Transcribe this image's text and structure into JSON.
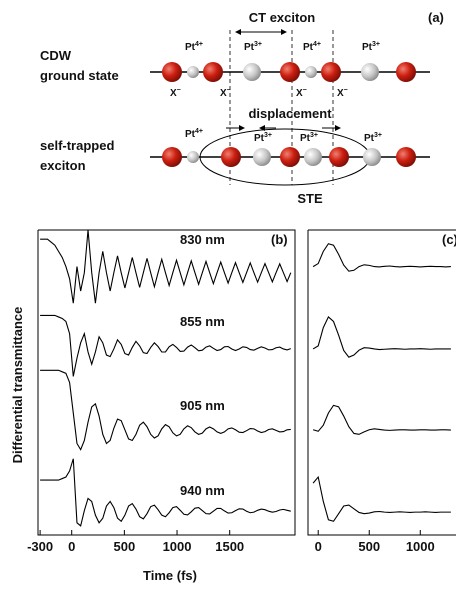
{
  "diagram": {
    "panel_label": "(a)",
    "title": "CT exciton",
    "ground_label": [
      "CDW",
      "ground state"
    ],
    "ste_label": [
      "self-trapped",
      "exciton"
    ],
    "displacement": "displacement",
    "ste": "STE",
    "ground_ions": [
      {
        "base": "Pt",
        "sup": "4+"
      },
      {
        "base": "Pt",
        "sup": "3+"
      },
      {
        "base": "Pt",
        "sup": "4+"
      },
      {
        "base": "Pt",
        "sup": "3+"
      }
    ],
    "ground_halogens": [
      {
        "base": "X",
        "sup": "−"
      },
      {
        "base": "X",
        "sup": "−"
      },
      {
        "base": "X",
        "sup": "−"
      },
      {
        "base": "X",
        "sup": "−"
      }
    ],
    "ste_ions": [
      {
        "base": "Pt",
        "sup": "4+"
      },
      {
        "base": "Pt",
        "sup": "3+"
      },
      {
        "base": "Pt",
        "sup": "3+"
      },
      {
        "base": "Pt",
        "sup": "3+"
      }
    ]
  },
  "chart_data": [
    {
      "type": "line",
      "panel_label": "(b)",
      "xlabel": "Time (fs)",
      "ylabel": "Differential transmittance",
      "xlim": [
        -320,
        2120
      ],
      "ylim": [
        0,
        100
      ],
      "xticks": [
        -300,
        0,
        500,
        1000,
        1500
      ],
      "x": [
        -300,
        -265,
        -230,
        -195,
        -160,
        -125,
        -90,
        -55,
        -20,
        15,
        50,
        85,
        120,
        155,
        190,
        225,
        260,
        295,
        330,
        365,
        400,
        435,
        470,
        505,
        540,
        575,
        610,
        645,
        680,
        715,
        750,
        785,
        820,
        855,
        890,
        925,
        960,
        995,
        1030,
        1065,
        1100,
        1135,
        1170,
        1205,
        1240,
        1275,
        1310,
        1345,
        1380,
        1415,
        1450,
        1485,
        1520,
        1555,
        1590,
        1625,
        1660,
        1695,
        1730,
        1765,
        1800,
        1835,
        1870,
        1905,
        1940,
        1975,
        2010,
        2045,
        2080
      ],
      "series": [
        {
          "name": "830 nm",
          "color": "#000000",
          "values": [
            97,
            97,
            97,
            96,
            95,
            93,
            91,
            88,
            84,
            76,
            88,
            80,
            86,
            100,
            86,
            76,
            86,
            93,
            86,
            80,
            86,
            91.5,
            86,
            81,
            86,
            91,
            86,
            81.2,
            86,
            90.7,
            86,
            81.4,
            86,
            90.4,
            86,
            81.8,
            86,
            90.1,
            86,
            82,
            86,
            89.9,
            86,
            82.2,
            86,
            89.7,
            86,
            82.4,
            86,
            89.5,
            86,
            82.6,
            86,
            89.3,
            86,
            82.8,
            86,
            89.2,
            86,
            82.9,
            86,
            89,
            86,
            83,
            86,
            88.9,
            86,
            83.1,
            86
          ]
        },
        {
          "name": "855 nm",
          "color": "#000000",
          "values": [
            72,
            72,
            72,
            72,
            72,
            71.5,
            71,
            70,
            66,
            52,
            58,
            63,
            66,
            60,
            56,
            60,
            65,
            63,
            59,
            58.5,
            61,
            64,
            62.5,
            59.5,
            59,
            61.5,
            63.5,
            62,
            59.8,
            59.5,
            61.5,
            63,
            61.8,
            60,
            60,
            61.7,
            62.5,
            61.5,
            60.2,
            60.3,
            61.6,
            62.3,
            61.4,
            60.4,
            60.6,
            61.6,
            62,
            61.2,
            60.5,
            60.8,
            61.7,
            61.8,
            61,
            60.5,
            61,
            61.7,
            61.5,
            60.8,
            60.6,
            61.2,
            61.7,
            61.3,
            60.7,
            60.8,
            61.4,
            61.6,
            61,
            60.7,
            61.1
          ]
        },
        {
          "name": "905 nm",
          "color": "#000000",
          "values": [
            54,
            54,
            54,
            54,
            54,
            54,
            53.5,
            53,
            50,
            40,
            30,
            28,
            31,
            37,
            42,
            43,
            39,
            33,
            30,
            31,
            35,
            38,
            37.5,
            34.5,
            31.5,
            31,
            33,
            36,
            37,
            35.5,
            33,
            31.8,
            32.5,
            34.8,
            36.2,
            35.5,
            33.5,
            32.5,
            33,
            34.8,
            35.8,
            35.2,
            33.8,
            33,
            33.4,
            34.8,
            35.4,
            34.8,
            33.8,
            33.3,
            33.8,
            34.8,
            35.1,
            34.5,
            33.7,
            33.6,
            34.2,
            34.9,
            34.8,
            34.1,
            33.6,
            33.9,
            34.6,
            34.8,
            34.3,
            33.8,
            33.9,
            34.5,
            34.6
          ]
        },
        {
          "name": "940 nm",
          "color": "#000000",
          "values": [
            18,
            18,
            18,
            18,
            18,
            18,
            18.5,
            19,
            21,
            25,
            4,
            3,
            8,
            12,
            11,
            6.5,
            4,
            5.5,
            9.5,
            11,
            9,
            5.5,
            4.5,
            6.5,
            9.5,
            10.3,
            8.5,
            6,
            5.3,
            7,
            9.3,
            9.8,
            8.3,
            6.5,
            6,
            7.3,
            9,
            9.3,
            8.1,
            6.8,
            6.6,
            7.6,
            8.8,
            9,
            8,
            7,
            6.9,
            7.8,
            8.7,
            8.7,
            7.9,
            7.2,
            7.3,
            8,
            8.6,
            8.5,
            7.8,
            7.3,
            7.5,
            8.1,
            8.5,
            8.3,
            7.8,
            7.5,
            7.7,
            8.2,
            8.4,
            8.1,
            7.8
          ]
        }
      ]
    },
    {
      "type": "line",
      "panel_label": "(c)",
      "xlim": [
        -100,
        1350
      ],
      "ylim": [
        0,
        100
      ],
      "xticks": [
        0,
        500,
        1000
      ],
      "x": [
        -50,
        0,
        50,
        100,
        150,
        200,
        250,
        300,
        350,
        400,
        450,
        500,
        550,
        600,
        650,
        700,
        750,
        800,
        850,
        900,
        950,
        1000,
        1050,
        1100,
        1150,
        1200,
        1250,
        1300
      ],
      "series": [
        {
          "color": "#000000",
          "values": [
            88,
            89,
            93,
            95.5,
            95,
            92,
            88.5,
            86.5,
            86.8,
            88,
            88.6,
            88.4,
            88,
            87.9,
            88.1,
            88.2,
            88,
            87.9,
            88,
            88.1,
            88,
            87.9,
            88,
            88.1,
            88,
            88,
            87.9,
            88
          ]
        },
        {
          "color": "#000000",
          "values": [
            61,
            62,
            68,
            71.5,
            70,
            65.5,
            60.5,
            58.3,
            59,
            60.6,
            61.4,
            61.3,
            61,
            60.8,
            60.9,
            61,
            61.1,
            61,
            60.9,
            61,
            61,
            61.1,
            61,
            60.9,
            61,
            61,
            61,
            61
          ]
        },
        {
          "color": "#000000",
          "values": [
            34.5,
            34,
            36,
            40,
            42.5,
            42,
            39,
            35.5,
            33.3,
            33,
            33.8,
            34.5,
            34.8,
            34.6,
            34.4,
            34.3,
            34.4,
            34.5,
            34.5,
            34.4,
            34.4,
            34.5,
            34.5,
            34.4,
            34.4,
            34.5,
            34.5,
            34.4
          ]
        },
        {
          "color": "#000000",
          "values": [
            17,
            19,
            11,
            5,
            4.5,
            7,
            9.5,
            9.8,
            8.6,
            7.4,
            7,
            7.2,
            7.6,
            7.7,
            7.5,
            7.4,
            7.5,
            7.6,
            7.5,
            7.4,
            7.5,
            7.5,
            7.6,
            7.5,
            7.4,
            7.5,
            7.5,
            7.5
          ]
        }
      ]
    }
  ]
}
